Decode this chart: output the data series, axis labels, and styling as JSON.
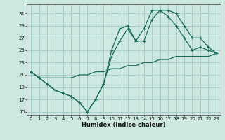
{
  "xlabel": "Humidex (Indice chaleur)",
  "bg_color": "#cce8e0",
  "grid_color": "#aacccc",
  "line_color": "#1a6b5a",
  "xlim": [
    -0.5,
    23.5
  ],
  "ylim": [
    14.5,
    32.5
  ],
  "yticks": [
    15,
    17,
    19,
    21,
    23,
    25,
    27,
    29,
    31
  ],
  "xticks": [
    0,
    1,
    2,
    3,
    4,
    5,
    6,
    7,
    8,
    9,
    10,
    11,
    12,
    13,
    14,
    15,
    16,
    17,
    18,
    19,
    20,
    21,
    22,
    23
  ],
  "line1_x": [
    0,
    1,
    2,
    3,
    4,
    5,
    6,
    7,
    8,
    9,
    10,
    11,
    12,
    13,
    14,
    15,
    16,
    17,
    18,
    19,
    20,
    21,
    22,
    23
  ],
  "line1_y": [
    21.5,
    20.5,
    19.5,
    18.5,
    18.0,
    17.5,
    16.5,
    15.0,
    17.0,
    19.5,
    25.0,
    28.5,
    29.0,
    26.5,
    28.5,
    31.5,
    31.5,
    30.5,
    29.0,
    27.0,
    25.0,
    25.5,
    25.0,
    24.5
  ],
  "line2_x": [
    0,
    1,
    2,
    3,
    4,
    5,
    6,
    7,
    8,
    9,
    10,
    11,
    12,
    13,
    14,
    15,
    16,
    17,
    18,
    19,
    20,
    21,
    22,
    23
  ],
  "line2_y": [
    21.5,
    20.5,
    19.5,
    18.5,
    18.0,
    17.5,
    16.5,
    15.0,
    17.0,
    19.5,
    24.0,
    26.5,
    28.5,
    26.5,
    26.5,
    30.0,
    31.5,
    31.5,
    31.0,
    29.0,
    27.0,
    27.0,
    25.5,
    24.5
  ],
  "line3_x": [
    0,
    1,
    2,
    3,
    4,
    5,
    6,
    7,
    8,
    9,
    10,
    11,
    12,
    13,
    14,
    15,
    16,
    17,
    18,
    19,
    20,
    21,
    22,
    23
  ],
  "line3_y": [
    21.5,
    20.5,
    20.5,
    20.5,
    20.5,
    20.5,
    21.0,
    21.0,
    21.5,
    21.5,
    22.0,
    22.0,
    22.5,
    22.5,
    23.0,
    23.0,
    23.5,
    23.5,
    24.0,
    24.0,
    24.0,
    24.0,
    24.0,
    24.5
  ]
}
